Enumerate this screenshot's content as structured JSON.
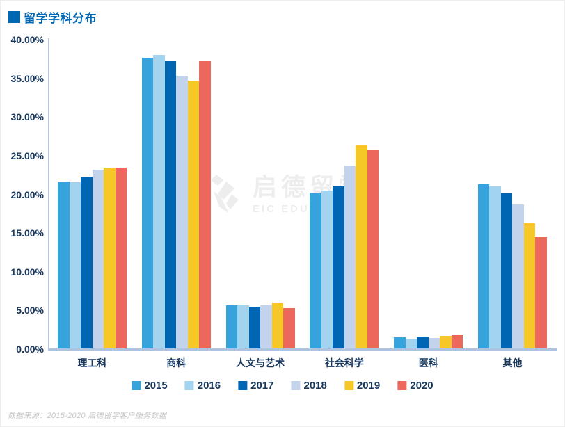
{
  "header": {
    "title": "留学学科分布"
  },
  "watermark": {
    "cn": "启德留学",
    "en": "EIC EDUCATION"
  },
  "footer": {
    "source_note": "数据来源：2015-2020 启德留学客户服务数据"
  },
  "colors": {
    "title_blue": "#0067b4",
    "axis_label_navy": "#17375e",
    "axis_line": "#aec3e0",
    "watermark_gray": "#ededed",
    "footer_gray": "#c6c6c6"
  },
  "chart_data": {
    "type": "bar",
    "title": "留学学科分布",
    "categories": [
      "理工科",
      "商科",
      "人文与艺术",
      "社会科学",
      "医科",
      "其他"
    ],
    "series": [
      {
        "name": "2015",
        "color": "#36a3dc",
        "values": [
          21.7,
          37.7,
          5.7,
          20.2,
          1.5,
          21.3
        ]
      },
      {
        "name": "2016",
        "color": "#a2d4f0",
        "values": [
          21.6,
          38.0,
          5.7,
          20.5,
          1.3,
          21.0
        ]
      },
      {
        "name": "2017",
        "color": "#0066b3",
        "values": [
          22.3,
          37.2,
          5.5,
          21.0,
          1.6,
          20.2
        ]
      },
      {
        "name": "2018",
        "color": "#c3d3ec",
        "values": [
          23.2,
          35.3,
          5.7,
          23.7,
          1.4,
          18.7
        ]
      },
      {
        "name": "2019",
        "color": "#f5c827",
        "values": [
          23.4,
          34.7,
          6.0,
          26.3,
          1.7,
          16.3
        ]
      },
      {
        "name": "2020",
        "color": "#ec685c",
        "values": [
          23.5,
          37.2,
          5.3,
          25.8,
          1.9,
          14.5
        ]
      }
    ],
    "y_ticks": [
      {
        "label": "0.00%",
        "value": 0
      },
      {
        "label": "5.00%",
        "value": 5
      },
      {
        "label": "10.00%",
        "value": 10
      },
      {
        "label": "15.00%",
        "value": 15
      },
      {
        "label": "20.00%",
        "value": 20
      },
      {
        "label": "25.00%",
        "value": 25
      },
      {
        "label": "30.00%",
        "value": 30
      },
      {
        "label": "35.00%",
        "value": 35
      },
      {
        "label": "40.00%",
        "value": 40
      }
    ],
    "ylim": [
      0,
      40
    ],
    "grid": false,
    "legend_position": "bottom"
  }
}
